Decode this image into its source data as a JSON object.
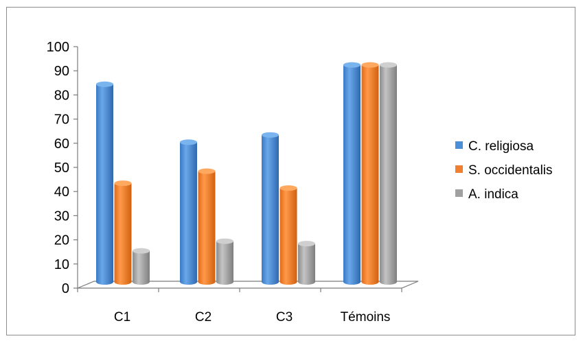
{
  "chart_data": {
    "type": "bar",
    "style": "3d-cylinder",
    "categories": [
      "C1",
      "C2",
      "C3",
      "Témoins"
    ],
    "series": [
      {
        "name": "C. religiosa",
        "color": "#4a8fd8",
        "values": [
          85,
          61,
          64,
          93
        ]
      },
      {
        "name": "S. occidentalis",
        "color": "#f08030",
        "values": [
          44,
          49,
          42,
          93
        ]
      },
      {
        "name": "A. indica",
        "color": "#a0a0a0",
        "values": [
          16,
          20,
          19,
          93
        ]
      }
    ],
    "ylim": [
      0,
      100
    ],
    "yticks": [
      0,
      10,
      20,
      30,
      40,
      50,
      60,
      70,
      80,
      90,
      100
    ],
    "grid": false,
    "legend_position": "right"
  }
}
